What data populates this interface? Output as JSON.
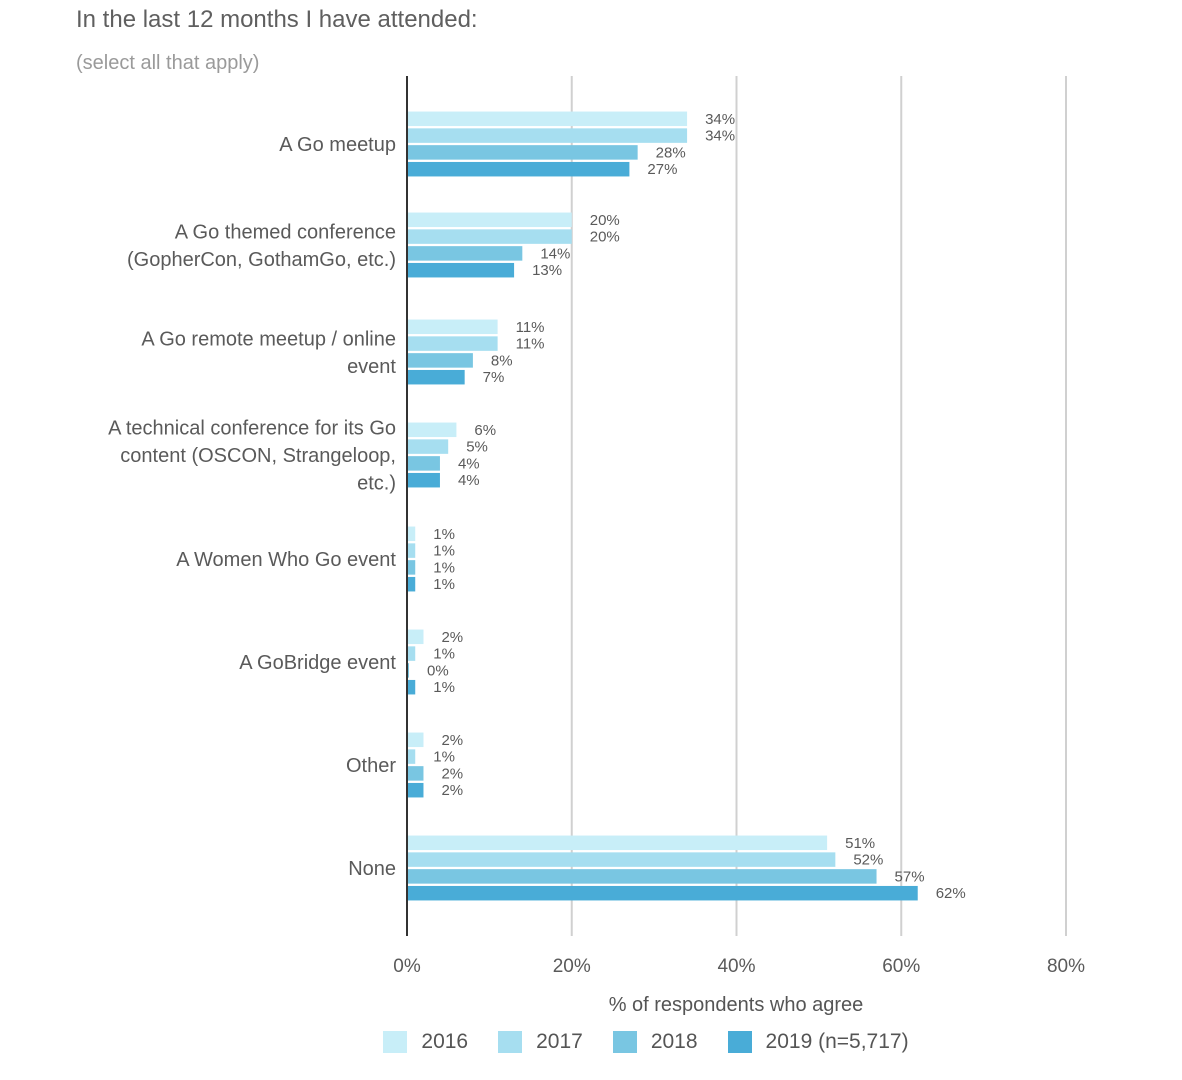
{
  "title": "In the last 12 months I have attended:",
  "subtitle": "(select all that apply)",
  "chart_data": {
    "type": "bar",
    "orientation": "horizontal",
    "categories": [
      [
        "A Go meetup"
      ],
      [
        "A Go themed conference",
        "(GopherCon, GothamGo, etc.)"
      ],
      [
        "A Go remote meetup / online",
        "event"
      ],
      [
        "A technical conference for its Go",
        "content (OSCON, Strangeloop,",
        "etc.)"
      ],
      [
        "A Women Who Go event"
      ],
      [
        "A GoBridge event"
      ],
      [
        "Other"
      ],
      [
        "None"
      ]
    ],
    "series": [
      {
        "name": "2016",
        "color": "#c8eef8",
        "values": [
          34,
          20,
          11,
          6,
          1,
          2,
          2,
          51
        ],
        "labels": [
          "34%",
          "20%",
          "11%",
          "6%",
          "1%",
          "2%",
          "2%",
          "51%"
        ]
      },
      {
        "name": "2017",
        "color": "#a6def0",
        "values": [
          34,
          20,
          11,
          5,
          1,
          1,
          1,
          52
        ],
        "labels": [
          "34%",
          "20%",
          "11%",
          "5%",
          "1%",
          "1%",
          "1%",
          "52%"
        ]
      },
      {
        "name": "2018",
        "color": "#79c6e2",
        "values": [
          28,
          14,
          8,
          4,
          1,
          0,
          2,
          57
        ],
        "labels": [
          "28%",
          "14%",
          "8%",
          "4%",
          "1%",
          "0%",
          "2%",
          "57%"
        ]
      },
      {
        "name": "2019 (n=5,717)",
        "color": "#49acd7",
        "values": [
          27,
          13,
          7,
          4,
          1,
          1,
          2,
          62
        ],
        "labels": [
          "27%",
          "13%",
          "7%",
          "4%",
          "1%",
          "1%",
          "2%",
          "62%"
        ]
      }
    ],
    "xlabel": "% of respondents who agree",
    "ylabel": "",
    "xlim": [
      0,
      80
    ],
    "xticks": [
      "0%",
      "20%",
      "40%",
      "60%",
      "80%"
    ],
    "grid": true,
    "legend_position": "bottom"
  }
}
